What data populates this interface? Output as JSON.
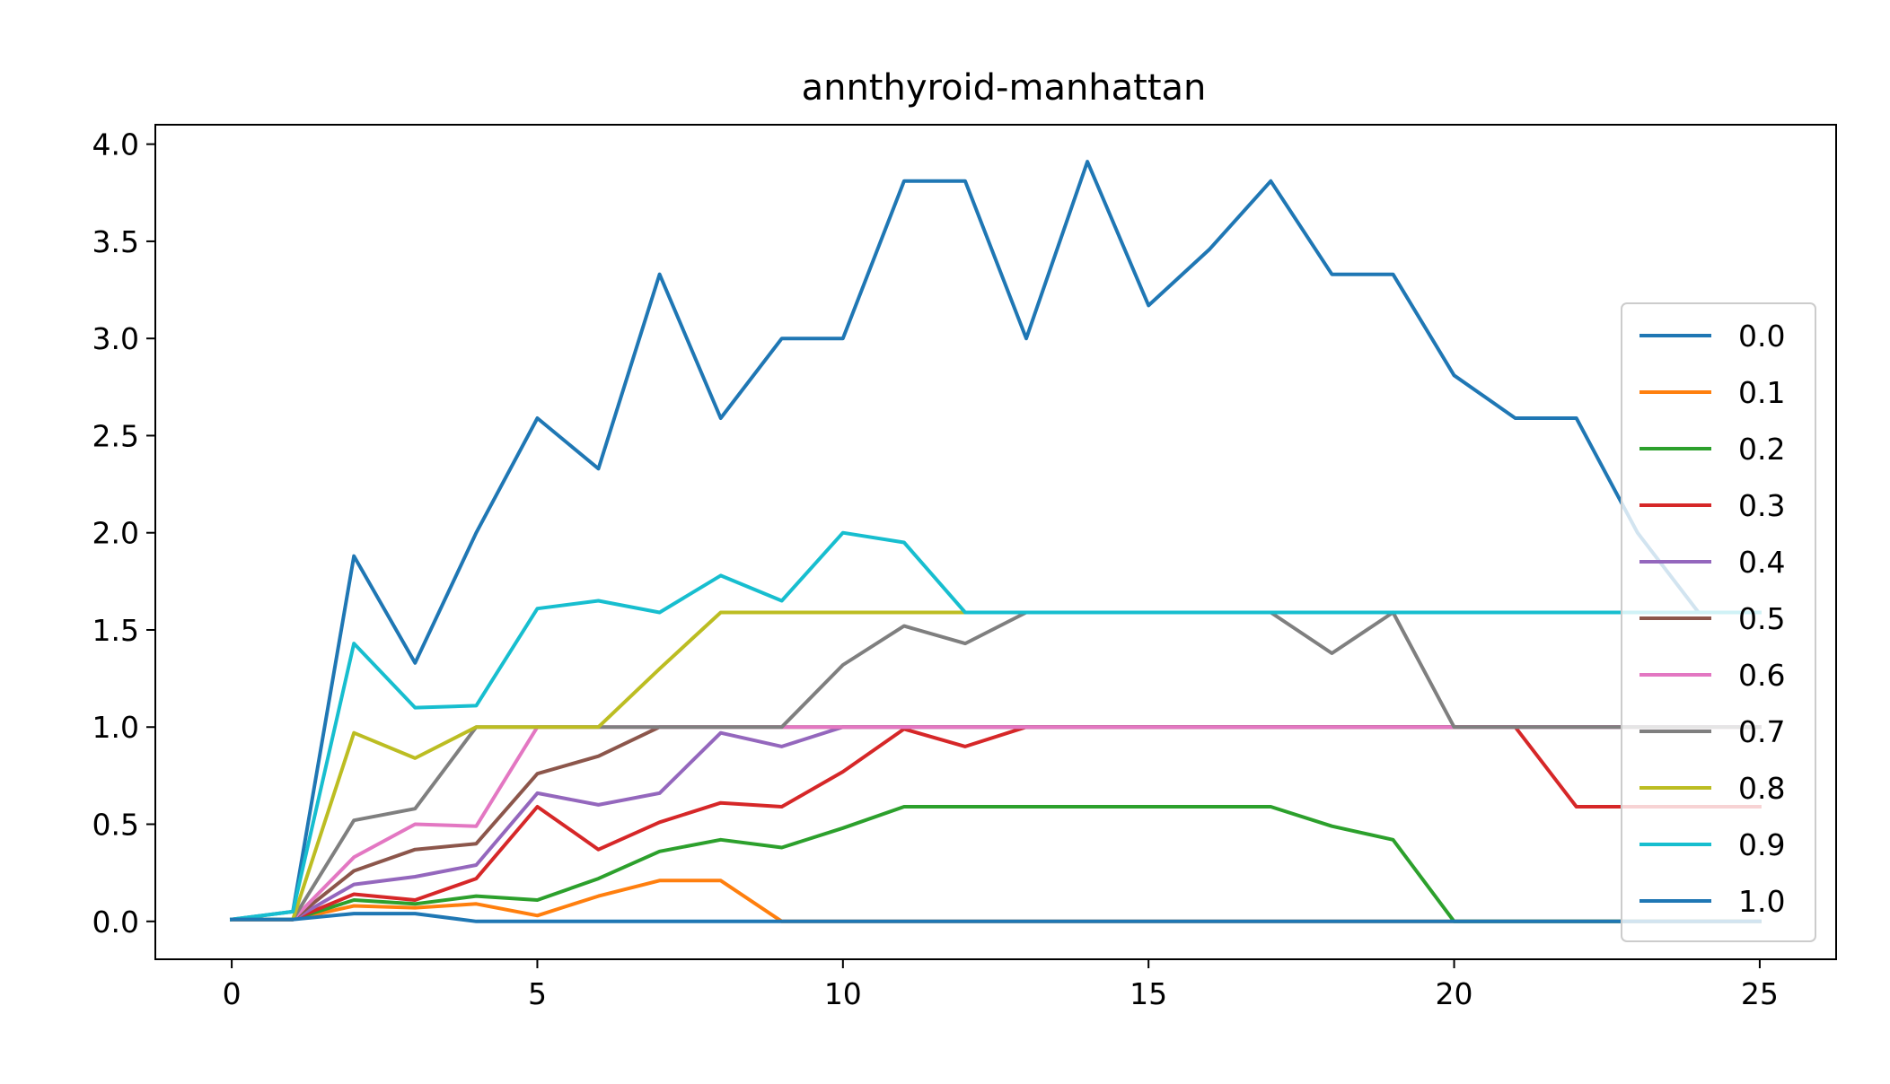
{
  "chart_data": {
    "type": "line",
    "title": "annthyroid-manhattan",
    "xlabel": "",
    "ylabel": "",
    "xlim": [
      -1.25,
      26.25
    ],
    "ylim": [
      -0.195,
      4.1
    ],
    "x_ticks": [
      0,
      5,
      10,
      15,
      20,
      25
    ],
    "y_ticks": [
      "0.0",
      "0.5",
      "1.0",
      "1.5",
      "2.0",
      "2.5",
      "3.0",
      "3.5",
      "4.0"
    ],
    "grid": false,
    "legend_position": "center-right",
    "x": [
      0,
      1,
      2,
      3,
      4,
      5,
      6,
      7,
      8,
      9,
      10,
      11,
      12,
      13,
      14,
      15,
      16,
      17,
      18,
      19,
      20,
      21,
      22,
      23,
      24,
      25
    ],
    "series": [
      {
        "name": "0.0",
        "color": "#1f77b4",
        "values": [
          0.01,
          0.05,
          1.88,
          1.33,
          2.0,
          2.59,
          2.33,
          3.33,
          2.59,
          3.0,
          3.0,
          3.81,
          3.81,
          3.0,
          3.91,
          3.17,
          3.46,
          3.81,
          3.33,
          3.33,
          2.81,
          2.59,
          2.59,
          2.0,
          1.59,
          1.59
        ]
      },
      {
        "name": "0.1",
        "color": "#ff7f0e",
        "values": [
          0.01,
          0.01,
          0.08,
          0.07,
          0.09,
          0.03,
          0.13,
          0.21,
          0.21,
          0.0,
          0.0,
          0.0,
          0.0,
          0.0,
          0.0,
          0.0,
          0.0,
          0.0,
          0.0,
          0.0,
          0.0,
          0.0,
          0.0,
          0.0,
          0.0,
          0.0
        ]
      },
      {
        "name": "0.2",
        "color": "#2ca02c",
        "values": [
          0.01,
          0.01,
          0.11,
          0.09,
          0.13,
          0.11,
          0.22,
          0.36,
          0.42,
          0.38,
          0.48,
          0.59,
          0.59,
          0.59,
          0.59,
          0.59,
          0.59,
          0.59,
          0.49,
          0.42,
          0.0,
          0.0,
          0.0,
          0.0,
          0.0,
          0.0
        ]
      },
      {
        "name": "0.3",
        "color": "#d62728",
        "values": [
          0.01,
          0.01,
          0.14,
          0.11,
          0.22,
          0.59,
          0.37,
          0.51,
          0.61,
          0.59,
          0.77,
          0.99,
          0.9,
          1.0,
          1.0,
          1.0,
          1.0,
          1.0,
          1.0,
          1.0,
          1.0,
          1.0,
          0.59,
          0.59,
          0.59,
          0.59
        ]
      },
      {
        "name": "0.4",
        "color": "#9467bd",
        "values": [
          0.01,
          0.01,
          0.19,
          0.23,
          0.29,
          0.66,
          0.6,
          0.66,
          0.97,
          0.9,
          1.0,
          1.0,
          1.0,
          1.0,
          1.0,
          1.0,
          1.0,
          1.0,
          1.0,
          1.0,
          1.0,
          1.0,
          1.0,
          1.0,
          1.0,
          1.0
        ]
      },
      {
        "name": "0.5",
        "color": "#8c564b",
        "values": [
          0.01,
          0.01,
          0.26,
          0.37,
          0.4,
          0.76,
          0.85,
          1.0,
          1.0,
          1.0,
          1.0,
          1.0,
          1.0,
          1.0,
          1.0,
          1.0,
          1.0,
          1.0,
          1.0,
          1.0,
          1.0,
          1.0,
          1.0,
          1.0,
          1.0,
          1.0
        ]
      },
      {
        "name": "0.6",
        "color": "#e377c2",
        "values": [
          0.01,
          0.01,
          0.33,
          0.5,
          0.49,
          1.0,
          1.0,
          1.0,
          1.0,
          1.0,
          1.0,
          1.0,
          1.0,
          1.0,
          1.0,
          1.0,
          1.0,
          1.0,
          1.0,
          1.0,
          1.0,
          1.0,
          1.0,
          1.0,
          1.0,
          1.0
        ]
      },
      {
        "name": "0.7",
        "color": "#7f7f7f",
        "values": [
          0.01,
          0.01,
          0.52,
          0.58,
          1.0,
          1.0,
          1.0,
          1.0,
          1.0,
          1.0,
          1.32,
          1.52,
          1.43,
          1.59,
          1.59,
          1.59,
          1.59,
          1.59,
          1.38,
          1.59,
          1.0,
          1.0,
          1.0,
          1.0,
          1.0,
          1.0
        ]
      },
      {
        "name": "0.8",
        "color": "#bcbd22",
        "values": [
          0.01,
          0.01,
          0.97,
          0.84,
          1.0,
          1.0,
          1.0,
          1.3,
          1.59,
          1.59,
          1.59,
          1.59,
          1.59,
          1.59,
          1.59,
          1.59,
          1.59,
          1.59,
          1.59,
          1.59,
          1.59,
          1.59,
          1.59,
          1.59,
          1.59,
          1.59
        ]
      },
      {
        "name": "0.9",
        "color": "#17becf",
        "values": [
          0.01,
          0.05,
          1.43,
          1.1,
          1.11,
          1.61,
          1.65,
          1.59,
          1.78,
          1.65,
          2.0,
          1.95,
          1.59,
          1.59,
          1.59,
          1.59,
          1.59,
          1.59,
          1.59,
          1.59,
          1.59,
          1.59,
          1.59,
          1.59,
          1.59,
          1.59
        ]
      },
      {
        "name": "1.0",
        "color": "#1f77b4",
        "values": [
          0.01,
          0.01,
          0.04,
          0.04,
          0.0,
          0.0,
          0.0,
          0.0,
          0.0,
          0.0,
          0.0,
          0.0,
          0.0,
          0.0,
          0.0,
          0.0,
          0.0,
          0.0,
          0.0,
          0.0,
          0.0,
          0.0,
          0.0,
          0.0,
          0.0,
          0.0
        ]
      }
    ]
  }
}
